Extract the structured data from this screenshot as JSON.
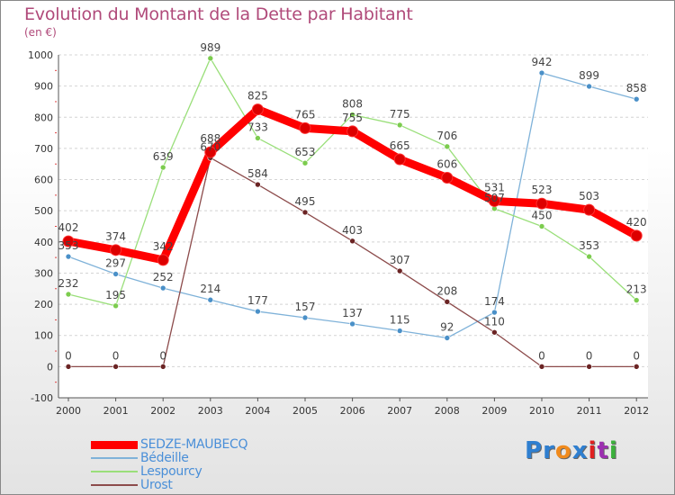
{
  "title": "Evolution du Montant de la Dette par Habitant",
  "subtitle": "(en €)",
  "logo": {
    "text": "Proxiti",
    "letter_colors": [
      "#2f7fd0",
      "#2f7fd0",
      "#f08a1c",
      "#2f7fd0",
      "#e02020",
      "#9c2fb0",
      "#3bb03b"
    ]
  },
  "chart_data": {
    "type": "line",
    "title": "Evolution du Montant de la Dette par Habitant",
    "ylabel": "(en €)",
    "xlabel": "",
    "x": [
      "2000",
      "2001",
      "2002",
      "2003",
      "2004",
      "2005",
      "2006",
      "2007",
      "2008",
      "2009",
      "2010",
      "2011",
      "2012"
    ],
    "ylim": [
      -100,
      1000
    ],
    "yticks": [
      -100,
      0,
      100,
      200,
      300,
      400,
      500,
      600,
      700,
      800,
      900,
      1000
    ],
    "ytick_labels": [
      "-100",
      "0",
      "100",
      "200",
      "300",
      "400",
      "500",
      "600",
      "700",
      "800",
      "900",
      "1000"
    ],
    "grid": "horizontal",
    "series": [
      {
        "name": "SEDZE-MAUBECQ",
        "color": "#ff0000",
        "marker": "#dd0000",
        "emphasis": true,
        "values": [
          402,
          374,
          342,
          688,
          825,
          765,
          755,
          665,
          606,
          531,
          523,
          503,
          420
        ],
        "labels": [
          "402",
          "374",
          "342",
          "688",
          "825",
          "765",
          "755",
          "665",
          "606",
          "531",
          "523",
          "503",
          "420"
        ]
      },
      {
        "name": "Bédeille",
        "color": "#7fb2d9",
        "marker": "#4a90c8",
        "emphasis": false,
        "values": [
          353,
          297,
          252,
          214,
          177,
          157,
          137,
          115,
          92,
          174,
          942,
          899,
          858
        ],
        "labels": [
          "353",
          "297",
          "252",
          "214",
          "177",
          "157",
          "137",
          "115",
          "92",
          "174",
          "942",
          "899",
          "858"
        ]
      },
      {
        "name": "Lespourcy",
        "color": "#9adf7a",
        "marker": "#7ccc4e",
        "emphasis": false,
        "values": [
          232,
          195,
          639,
          989,
          733,
          653,
          808,
          775,
          706,
          507,
          450,
          353,
          213
        ],
        "labels": [
          "232",
          "195",
          "639",
          "989",
          "733",
          "653",
          "808",
          "775",
          "706",
          "507",
          "450",
          "353",
          "213"
        ]
      },
      {
        "name": "Urost",
        "color": "#8c4b4b",
        "marker": "#6b2424",
        "emphasis": false,
        "values": [
          0,
          0,
          0,
          670,
          584,
          495,
          403,
          307,
          208,
          110,
          0,
          0,
          0
        ],
        "labels": [
          "0",
          "0",
          "0",
          "670",
          "584",
          "495",
          "403",
          "307",
          "208",
          "110",
          "0",
          "0",
          "0"
        ]
      }
    ]
  }
}
